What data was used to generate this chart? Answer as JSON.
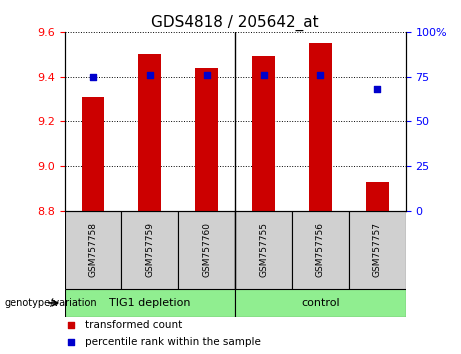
{
  "title": "GDS4818 / 205642_at",
  "categories": [
    "GSM757758",
    "GSM757759",
    "GSM757760",
    "GSM757755",
    "GSM757756",
    "GSM757757"
  ],
  "bar_values": [
    9.31,
    9.5,
    9.44,
    9.49,
    9.55,
    8.93
  ],
  "percentile_values": [
    75,
    76,
    76,
    76,
    76,
    68
  ],
  "ylim_left": [
    8.8,
    9.6
  ],
  "ylim_right": [
    0,
    100
  ],
  "yticks_left": [
    8.8,
    9.0,
    9.2,
    9.4,
    9.6
  ],
  "yticks_right": [
    0,
    25,
    50,
    75,
    100
  ],
  "ytick_labels_right": [
    "0",
    "25",
    "50",
    "75",
    "100%"
  ],
  "bar_color": "#cc0000",
  "marker_color": "#0000cc",
  "group1_label": "TIG1 depletion",
  "group2_label": "control",
  "group_bg_color": "#90ee90",
  "sample_box_color": "#d0d0d0",
  "legend_red_label": "transformed count",
  "legend_blue_label": "percentile rank within the sample",
  "bottom_label": "genotype/variation",
  "bar_width": 0.4,
  "title_fontsize": 11
}
